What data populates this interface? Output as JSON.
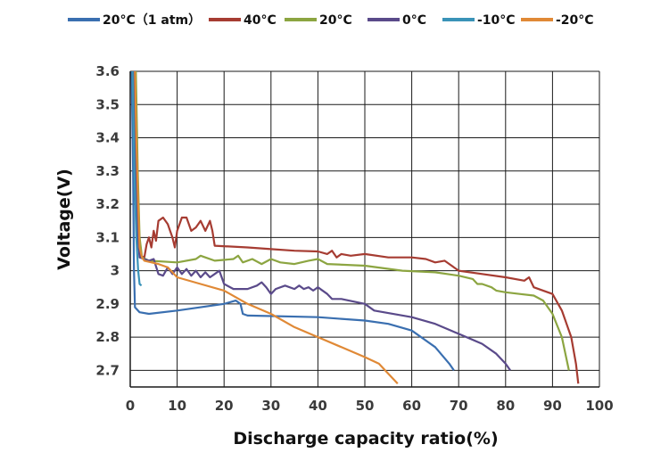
{
  "chart_data": {
    "type": "line",
    "xlabel": "Discharge capacity ratio(%)",
    "ylabel": "Voltage(V)",
    "xlim": [
      0,
      100
    ],
    "ylim": [
      2.65,
      3.6
    ],
    "xticks": [
      0,
      10,
      20,
      30,
      40,
      50,
      60,
      70,
      80,
      90,
      100
    ],
    "yticks": [
      2.7,
      2.8,
      2.9,
      3.0,
      3.1,
      3.2,
      3.3,
      3.4,
      3.5,
      3.6
    ],
    "ytick_labels": [
      "2.7",
      "2.8",
      "2.9",
      "3",
      "3.1",
      "3.2",
      "3.3",
      "3.4",
      "3.5",
      "3.6"
    ],
    "grid": true,
    "legend_position": "top",
    "series": [
      {
        "name": "20°C（1 atm）",
        "color": "#3a6fb0",
        "points": [
          [
            0.3,
            3.6
          ],
          [
            0.6,
            3.3
          ],
          [
            0.8,
            3.0
          ],
          [
            1.0,
            2.89
          ],
          [
            2.0,
            2.875
          ],
          [
            4.0,
            2.87
          ],
          [
            10.0,
            2.88
          ],
          [
            20.0,
            2.9
          ],
          [
            22.5,
            2.91
          ],
          [
            23.5,
            2.9
          ],
          [
            24.0,
            2.87
          ],
          [
            25.0,
            2.865
          ],
          [
            40.0,
            2.86
          ],
          [
            50.0,
            2.85
          ],
          [
            55.0,
            2.84
          ],
          [
            60.0,
            2.82
          ],
          [
            65.0,
            2.77
          ],
          [
            68.0,
            2.72
          ],
          [
            69.0,
            2.7
          ]
        ]
      },
      {
        "name": "40°C",
        "color": "#a63c32",
        "points": [
          [
            1.0,
            3.6
          ],
          [
            1.4,
            3.3
          ],
          [
            1.8,
            3.1
          ],
          [
            2.2,
            3.045
          ],
          [
            3.0,
            3.04
          ],
          [
            3.5,
            3.08
          ],
          [
            4.0,
            3.1
          ],
          [
            4.5,
            3.07
          ],
          [
            5.0,
            3.12
          ],
          [
            5.5,
            3.09
          ],
          [
            6.0,
            3.15
          ],
          [
            7.0,
            3.16
          ],
          [
            8.0,
            3.14
          ],
          [
            8.5,
            3.12
          ],
          [
            9.0,
            3.1
          ],
          [
            9.5,
            3.07
          ],
          [
            10.0,
            3.12
          ],
          [
            11.0,
            3.16
          ],
          [
            12.0,
            3.16
          ],
          [
            13.0,
            3.12
          ],
          [
            14.0,
            3.13
          ],
          [
            15.0,
            3.15
          ],
          [
            16.0,
            3.12
          ],
          [
            17.0,
            3.15
          ],
          [
            17.5,
            3.12
          ],
          [
            18.0,
            3.075
          ],
          [
            25.0,
            3.07
          ],
          [
            30.0,
            3.065
          ],
          [
            35.0,
            3.06
          ],
          [
            40.0,
            3.058
          ],
          [
            42.0,
            3.05
          ],
          [
            43.0,
            3.06
          ],
          [
            44.0,
            3.04
          ],
          [
            45.0,
            3.05
          ],
          [
            47.0,
            3.045
          ],
          [
            50.0,
            3.05
          ],
          [
            55.0,
            3.04
          ],
          [
            60.0,
            3.04
          ],
          [
            63.0,
            3.035
          ],
          [
            65.0,
            3.025
          ],
          [
            67.0,
            3.03
          ],
          [
            68.0,
            3.02
          ],
          [
            70.0,
            3.0
          ],
          [
            75.0,
            2.99
          ],
          [
            80.0,
            2.98
          ],
          [
            84.0,
            2.97
          ],
          [
            85.0,
            2.98
          ],
          [
            86.0,
            2.95
          ],
          [
            90.0,
            2.93
          ],
          [
            92.0,
            2.88
          ],
          [
            94.0,
            2.8
          ],
          [
            95.0,
            2.72
          ],
          [
            95.5,
            2.66
          ]
        ]
      },
      {
        "name": "20°C",
        "color": "#8ca541",
        "points": [
          [
            1.2,
            3.6
          ],
          [
            1.6,
            3.3
          ],
          [
            2.0,
            3.1
          ],
          [
            2.5,
            3.04
          ],
          [
            4.0,
            3.03
          ],
          [
            10.0,
            3.025
          ],
          [
            14.0,
            3.035
          ],
          [
            15.0,
            3.045
          ],
          [
            16.0,
            3.04
          ],
          [
            18.0,
            3.03
          ],
          [
            22.0,
            3.035
          ],
          [
            23.0,
            3.045
          ],
          [
            24.0,
            3.025
          ],
          [
            26.0,
            3.035
          ],
          [
            28.0,
            3.02
          ],
          [
            30.0,
            3.035
          ],
          [
            32.0,
            3.025
          ],
          [
            35.0,
            3.02
          ],
          [
            38.0,
            3.03
          ],
          [
            40.0,
            3.035
          ],
          [
            42.0,
            3.02
          ],
          [
            50.0,
            3.015
          ],
          [
            58.0,
            3.0
          ],
          [
            65.0,
            2.995
          ],
          [
            70.0,
            2.985
          ],
          [
            73.0,
            2.975
          ],
          [
            74.0,
            2.96
          ],
          [
            75.0,
            2.96
          ],
          [
            77.0,
            2.95
          ],
          [
            78.0,
            2.94
          ],
          [
            80.0,
            2.935
          ],
          [
            83.0,
            2.93
          ],
          [
            86.0,
            2.925
          ],
          [
            88.0,
            2.91
          ],
          [
            90.0,
            2.87
          ],
          [
            92.0,
            2.8
          ],
          [
            93.5,
            2.7
          ]
        ]
      },
      {
        "name": "0°C",
        "color": "#5a4a8a",
        "points": [
          [
            0.8,
            3.6
          ],
          [
            1.2,
            3.3
          ],
          [
            1.6,
            3.1
          ],
          [
            2.0,
            3.04
          ],
          [
            3.0,
            3.035
          ],
          [
            4.0,
            3.03
          ],
          [
            5.0,
            3.035
          ],
          [
            6.0,
            2.99
          ],
          [
            7.0,
            2.985
          ],
          [
            8.0,
            3.01
          ],
          [
            9.0,
            2.99
          ],
          [
            10.0,
            3.01
          ],
          [
            11.0,
            2.99
          ],
          [
            12.0,
            3.005
          ],
          [
            13.0,
            2.985
          ],
          [
            14.0,
            3.0
          ],
          [
            15.0,
            2.98
          ],
          [
            16.0,
            2.995
          ],
          [
            17.0,
            2.98
          ],
          [
            18.0,
            2.99
          ],
          [
            19.0,
            3.0
          ],
          [
            20.0,
            2.96
          ],
          [
            22.0,
            2.945
          ],
          [
            25.0,
            2.945
          ],
          [
            27.0,
            2.955
          ],
          [
            28.0,
            2.965
          ],
          [
            29.0,
            2.95
          ],
          [
            30.0,
            2.93
          ],
          [
            31.0,
            2.945
          ],
          [
            33.0,
            2.955
          ],
          [
            35.0,
            2.945
          ],
          [
            36.0,
            2.955
          ],
          [
            37.0,
            2.945
          ],
          [
            38.0,
            2.95
          ],
          [
            39.0,
            2.94
          ],
          [
            40.0,
            2.95
          ],
          [
            42.0,
            2.93
          ],
          [
            43.0,
            2.915
          ],
          [
            45.0,
            2.915
          ],
          [
            50.0,
            2.9
          ],
          [
            52.0,
            2.88
          ],
          [
            60.0,
            2.86
          ],
          [
            65.0,
            2.84
          ],
          [
            70.0,
            2.81
          ],
          [
            75.0,
            2.78
          ],
          [
            78.0,
            2.75
          ],
          [
            80.0,
            2.72
          ],
          [
            81.0,
            2.7
          ]
        ]
      },
      {
        "name": "-10°C",
        "color": "#3a93b8",
        "points": [
          [
            0.5,
            3.6
          ],
          [
            0.9,
            3.3
          ],
          [
            1.3,
            3.1
          ],
          [
            1.7,
            3.0
          ],
          [
            2.0,
            2.96
          ],
          [
            2.4,
            2.955
          ]
        ]
      },
      {
        "name": "-20°C",
        "color": "#e08936",
        "points": [
          [
            1.0,
            3.6
          ],
          [
            1.3,
            3.4
          ],
          [
            1.7,
            3.2
          ],
          [
            2.0,
            3.07
          ],
          [
            2.5,
            3.04
          ],
          [
            3.0,
            3.03
          ],
          [
            6.0,
            3.02
          ],
          [
            8.0,
            3.01
          ],
          [
            10.0,
            2.98
          ],
          [
            15.0,
            2.96
          ],
          [
            20.0,
            2.94
          ],
          [
            25.0,
            2.9
          ],
          [
            30.0,
            2.87
          ],
          [
            35.0,
            2.83
          ],
          [
            40.0,
            2.8
          ],
          [
            45.0,
            2.77
          ],
          [
            50.0,
            2.74
          ],
          [
            53.0,
            2.72
          ],
          [
            55.0,
            2.69
          ],
          [
            57.0,
            2.66
          ]
        ]
      }
    ]
  }
}
